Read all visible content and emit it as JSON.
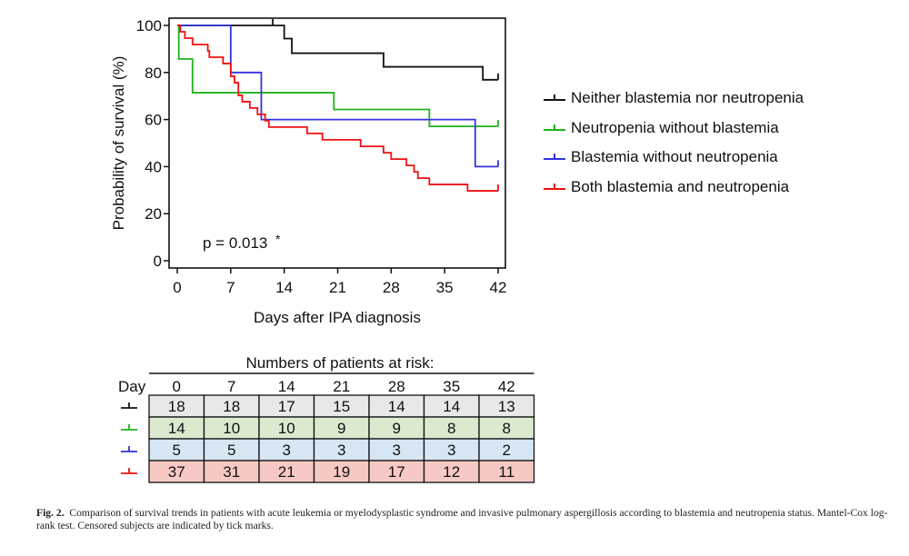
{
  "chart_data": {
    "type": "line",
    "subtype": "kaplan-meier",
    "xlabel": "Days after IPA diagnosis",
    "ylabel": "Probability of survival (%)",
    "xlim": [
      0,
      42
    ],
    "ylim": [
      0,
      100
    ],
    "xticks": [
      "0",
      "7",
      "14",
      "21",
      "28",
      "35",
      "42"
    ],
    "yticks": [
      "0",
      "20",
      "40",
      "60",
      "80",
      "100"
    ],
    "annotation": "p = 0.013",
    "annotation_mark": "*",
    "legend_position": "right",
    "grid": false,
    "series": [
      {
        "name": "Neither blastemia nor neutropenia",
        "color": "#111111",
        "steps": [
          [
            0,
            100
          ],
          [
            14,
            94.4
          ],
          [
            15,
            88.2
          ],
          [
            27,
            82.4
          ],
          [
            40,
            76.9
          ],
          [
            42,
            76.9
          ]
        ],
        "censored": [
          [
            12.5,
            100
          ],
          [
            42,
            76.9
          ]
        ]
      },
      {
        "name": "Neutropenia without blastemia",
        "color": "#1fb21f",
        "steps": [
          [
            0,
            100
          ],
          [
            0.2,
            85.7
          ],
          [
            2,
            71.4
          ],
          [
            20.5,
            64.3
          ],
          [
            33,
            57.1
          ],
          [
            42,
            57.1
          ]
        ],
        "censored": [
          [
            42,
            57.1
          ]
        ]
      },
      {
        "name": "Blastemia without neutropenia",
        "color": "#3333dd",
        "steps": [
          [
            0,
            100
          ],
          [
            7,
            80
          ],
          [
            11,
            60
          ],
          [
            39,
            40
          ],
          [
            42,
            40
          ]
        ],
        "censored": [
          [
            42,
            40
          ]
        ]
      },
      {
        "name": "Both blastemia and neutropenia",
        "color": "#ee1111",
        "steps": [
          [
            0,
            100
          ],
          [
            0.4,
            97.3
          ],
          [
            1,
            94.6
          ],
          [
            2,
            91.9
          ],
          [
            4,
            89.2
          ],
          [
            4.2,
            86.5
          ],
          [
            6,
            83.8
          ],
          [
            7,
            78.4
          ],
          [
            7.5,
            75.7
          ],
          [
            8,
            70.3
          ],
          [
            8.5,
            67.6
          ],
          [
            9.5,
            64.9
          ],
          [
            10.5,
            62.2
          ],
          [
            11.5,
            59.5
          ],
          [
            12,
            56.8
          ],
          [
            17,
            54.1
          ],
          [
            19,
            51.4
          ],
          [
            24,
            48.6
          ],
          [
            27,
            45.9
          ],
          [
            28,
            43.2
          ],
          [
            30,
            40.5
          ],
          [
            31,
            37.8
          ],
          [
            31.5,
            35.1
          ],
          [
            33,
            32.4
          ],
          [
            38,
            29.7
          ],
          [
            42,
            29.7
          ]
        ],
        "censored": [
          [
            42,
            29.7
          ]
        ]
      }
    ]
  },
  "risk_table": {
    "title": "Numbers of patients at risk:",
    "day_label": "Day",
    "days": [
      "0",
      "7",
      "14",
      "21",
      "28",
      "35",
      "42"
    ],
    "rows": [
      {
        "color": "#111111",
        "fill": "#e8e8e8",
        "values": [
          "18",
          "18",
          "17",
          "15",
          "14",
          "14",
          "13"
        ]
      },
      {
        "color": "#1fb21f",
        "fill": "#dbe9cf",
        "values": [
          "14",
          "10",
          "10",
          "9",
          "9",
          "8",
          "8"
        ]
      },
      {
        "color": "#3333dd",
        "fill": "#d6e6f3",
        "values": [
          "5",
          "5",
          "3",
          "3",
          "3",
          "3",
          "2"
        ]
      },
      {
        "color": "#ee1111",
        "fill": "#f7c9c5",
        "values": [
          "37",
          "31",
          "21",
          "19",
          "17",
          "12",
          "11"
        ]
      }
    ]
  },
  "caption": {
    "label": "Fig. 2.",
    "text": "Comparison of survival trends in patients with acute leukemia or myelodysplastic syndrome and invasive pulmonary aspergillosis according to blastemia and neutropenia status. Mantel-Cox log-rank test. Censored subjects are indicated by tick marks."
  }
}
